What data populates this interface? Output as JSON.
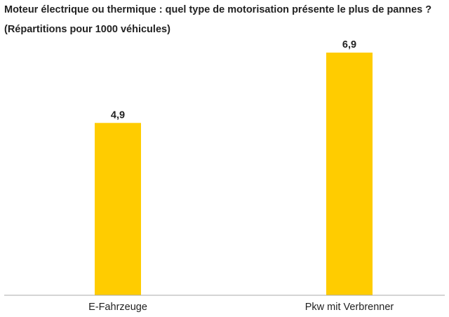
{
  "title": "Moteur électrique ou thermique : quel type de motorisation présente le plus de pannes ?",
  "subtitle": "(Répartitions pour 1000 véhicules)",
  "chart_data": {
    "type": "bar",
    "categories": [
      "E-Fahrzeuge",
      "Pkw mit Verbrenner"
    ],
    "values": [
      4.9,
      6.9
    ],
    "value_labels": [
      "4,9",
      "6,9"
    ],
    "title": "Moteur électrique ou thermique : quel type de motorisation présente le plus de pannes ?",
    "subtitle": "(Répartitions pour 1000 véhicules)",
    "xlabel": "",
    "ylabel": "",
    "ylim": [
      0,
      6.9
    ],
    "grid": false,
    "bar_color": "#FFCC00",
    "baseline_color": "#AAAAAA"
  }
}
